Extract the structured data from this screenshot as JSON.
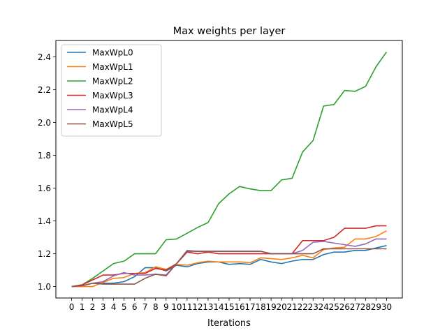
{
  "chart_data": {
    "type": "line",
    "title": "Max weights per layer",
    "xlabel": "Iterations",
    "ylabel": "",
    "xlim": [
      -1.5,
      31.5
    ],
    "ylim": [
      0.93,
      2.5
    ],
    "x": [
      0,
      1,
      2,
      3,
      4,
      5,
      6,
      7,
      8,
      9,
      10,
      11,
      12,
      13,
      14,
      15,
      16,
      17,
      18,
      19,
      20,
      21,
      22,
      23,
      24,
      25,
      26,
      27,
      28,
      29,
      30
    ],
    "x_ticks": [
      "0",
      "1",
      "2",
      "3",
      "4",
      "5",
      "6",
      "7",
      "8",
      "9",
      "10",
      "11",
      "12",
      "13",
      "14",
      "15",
      "16",
      "17",
      "18",
      "19",
      "20",
      "21",
      "22",
      "23",
      "24",
      "25",
      "26",
      "27",
      "28",
      "29",
      "30"
    ],
    "y_ticks": [
      1.0,
      1.2,
      1.4,
      1.6,
      1.8,
      2.0,
      2.2,
      2.4
    ],
    "y_tick_labels": [
      "1.0",
      "1.2",
      "1.4",
      "1.6",
      "1.8",
      "2.0",
      "2.2",
      "2.4"
    ],
    "grid": false,
    "legend_position": "upper-left",
    "series": [
      {
        "name": "MaxWpL0",
        "color": "#1f77b4",
        "values": [
          1.0,
          1.005,
          1.02,
          1.02,
          1.02,
          1.03,
          1.06,
          1.115,
          1.115,
          1.095,
          1.13,
          1.12,
          1.14,
          1.15,
          1.15,
          1.135,
          1.14,
          1.135,
          1.165,
          1.15,
          1.14,
          1.155,
          1.165,
          1.165,
          1.195,
          1.21,
          1.21,
          1.22,
          1.22,
          1.235,
          1.25
        ]
      },
      {
        "name": "MaxWpL1",
        "color": "#ff7f0e",
        "values": [
          1.0,
          1.0,
          1.0,
          1.025,
          1.05,
          1.055,
          1.08,
          1.085,
          1.12,
          1.105,
          1.135,
          1.13,
          1.145,
          1.155,
          1.15,
          1.15,
          1.15,
          1.145,
          1.175,
          1.17,
          1.165,
          1.175,
          1.19,
          1.175,
          1.225,
          1.235,
          1.24,
          1.29,
          1.29,
          1.305,
          1.34
        ]
      },
      {
        "name": "MaxWpL2",
        "color": "#2ca02c",
        "values": [
          1.0,
          1.01,
          1.05,
          1.095,
          1.14,
          1.155,
          1.2,
          1.2,
          1.2,
          1.285,
          1.29,
          1.325,
          1.36,
          1.39,
          1.505,
          1.565,
          1.61,
          1.595,
          1.585,
          1.585,
          1.65,
          1.66,
          1.82,
          1.89,
          2.1,
          2.11,
          2.195,
          2.19,
          2.22,
          2.34,
          2.43
        ]
      },
      {
        "name": "MaxWpL3",
        "color": "#d62728",
        "values": [
          1.0,
          1.01,
          1.04,
          1.07,
          1.07,
          1.08,
          1.08,
          1.08,
          1.11,
          1.1,
          1.14,
          1.21,
          1.2,
          1.21,
          1.2,
          1.2,
          1.2,
          1.2,
          1.2,
          1.2,
          1.2,
          1.2,
          1.28,
          1.28,
          1.28,
          1.3,
          1.355,
          1.355,
          1.355,
          1.37,
          1.37
        ]
      },
      {
        "name": "MaxWpL4",
        "color": "#9467bd",
        "values": [
          1.0,
          1.005,
          1.02,
          1.03,
          1.065,
          1.085,
          1.07,
          1.07,
          1.075,
          1.07,
          1.14,
          1.22,
          1.215,
          1.215,
          1.215,
          1.215,
          1.215,
          1.215,
          1.215,
          1.2,
          1.2,
          1.2,
          1.22,
          1.27,
          1.275,
          1.265,
          1.255,
          1.245,
          1.26,
          1.29,
          1.29
        ]
      },
      {
        "name": "MaxWpL5",
        "color": "#8c564b",
        "values": [
          1.0,
          1.005,
          1.02,
          1.015,
          1.015,
          1.015,
          1.015,
          1.05,
          1.075,
          1.065,
          1.14,
          1.215,
          1.215,
          1.215,
          1.215,
          1.215,
          1.215,
          1.215,
          1.215,
          1.2,
          1.2,
          1.2,
          1.2,
          1.2,
          1.23,
          1.23,
          1.23,
          1.23,
          1.23,
          1.23,
          1.23
        ]
      }
    ]
  }
}
